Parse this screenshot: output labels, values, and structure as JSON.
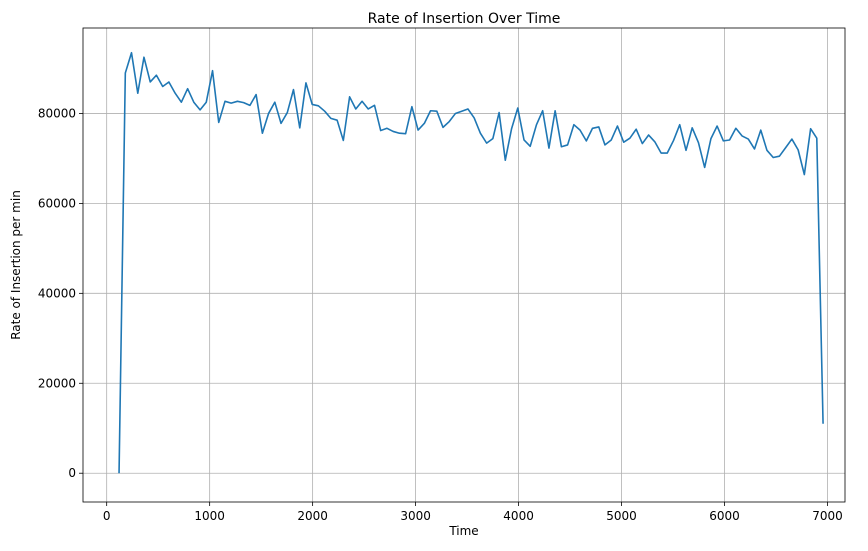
{
  "chart_data": {
    "type": "line",
    "title": "Rate of Insertion Over Time",
    "x_label": "Time",
    "y_label": "Rate of Insertion per min",
    "x": [
      120,
      181,
      241,
      302,
      362,
      423,
      483,
      544,
      604,
      665,
      725,
      786,
      846,
      907,
      967,
      1028,
      1088,
      1149,
      1209,
      1270,
      1330,
      1391,
      1451,
      1512,
      1572,
      1633,
      1693,
      1754,
      1814,
      1875,
      1935,
      1996,
      2056,
      2117,
      2177,
      2238,
      2298,
      2359,
      2419,
      2480,
      2540,
      2601,
      2661,
      2722,
      2782,
      2843,
      2903,
      2964,
      3024,
      3085,
      3145,
      3206,
      3266,
      3327,
      3387,
      3448,
      3508,
      3569,
      3629,
      3690,
      3750,
      3811,
      3871,
      3932,
      3992,
      4053,
      4113,
      4174,
      4234,
      4295,
      4355,
      4416,
      4476,
      4537,
      4597,
      4658,
      4718,
      4779,
      4839,
      4900,
      4960,
      5021,
      5081,
      5142,
      5202,
      5263,
      5323,
      5384,
      5444,
      5505,
      5565,
      5626,
      5686,
      5747,
      5807,
      5868,
      5928,
      5989,
      6049,
      6110,
      6170,
      6231,
      6291,
      6352,
      6412,
      6473,
      6533,
      6594,
      6654,
      6715,
      6775,
      6836,
      6896,
      6957
    ],
    "series": [
      {
        "name": "Rate of Insertion",
        "color": "#1f77b4",
        "values": [
          0,
          89000,
          93500,
          84500,
          92500,
          87000,
          88500,
          86000,
          87000,
          84500,
          82500,
          85500,
          82500,
          80800,
          82500,
          89500,
          78000,
          82700,
          82300,
          82700,
          82400,
          81800,
          84200,
          75600,
          80000,
          82500,
          77800,
          80200,
          85300,
          76800,
          86800,
          82000,
          81700,
          80500,
          78900,
          78500,
          74000,
          83700,
          81000,
          82700,
          81000,
          81800,
          76200,
          76700,
          76000,
          75600,
          75500,
          81500,
          76300,
          77800,
          80600,
          80500,
          76900,
          78200,
          80000,
          80500,
          81000,
          79000,
          75600,
          73400,
          74400,
          80200,
          69600,
          76600,
          81200,
          74100,
          72700,
          77500,
          80600,
          72300,
          80600,
          72600,
          73000,
          77500,
          76300,
          73900,
          76700,
          77000,
          73000,
          74100,
          77200,
          73600,
          74500,
          76500,
          73300,
          75200,
          73700,
          71200,
          71200,
          74000,
          77500,
          71800,
          76800,
          73500,
          68000,
          74400,
          77200,
          73900,
          74100,
          76700,
          75000,
          74300,
          72100,
          76300,
          71800,
          70200,
          70500,
          72400,
          74300,
          71900,
          66400,
          76600,
          74500,
          11000
        ]
      }
    ],
    "xlim": [
      -230,
      7170
    ],
    "ylim": [
      -6400,
      99000
    ],
    "xticks": [
      0,
      1000,
      2000,
      3000,
      4000,
      5000,
      6000,
      7000
    ],
    "yticks": [
      0,
      20000,
      40000,
      60000,
      80000
    ],
    "grid": true
  }
}
